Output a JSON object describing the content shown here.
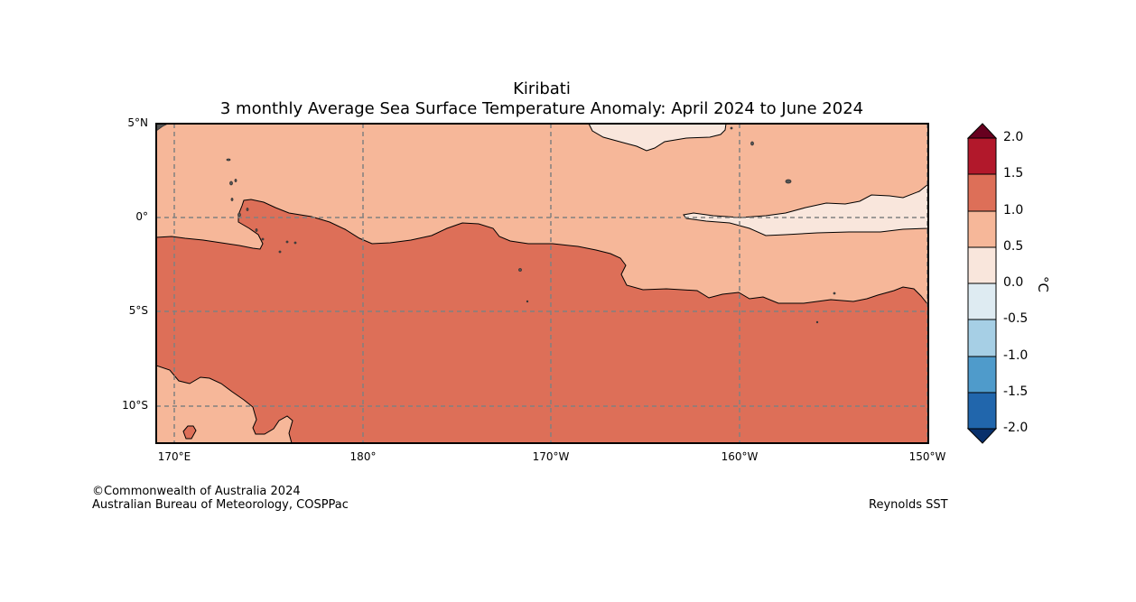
{
  "title": {
    "line1": "Kiribati",
    "line2": "3 monthly Average Sea Surface Temperature Anomaly: April 2024 to June 2024"
  },
  "axes": {
    "lat_labels": [
      "5°N",
      "0°",
      "5°S",
      "10°S"
    ],
    "lon_labels": [
      "170°E",
      "180°",
      "170°W",
      "160°W",
      "150°W"
    ]
  },
  "colorbar": {
    "unit": "°C",
    "ticks": [
      "2.0",
      "1.5",
      "1.0",
      "0.5",
      "0.0",
      "-0.5",
      "-1.0",
      "-1.5",
      "-2.0"
    ],
    "colors": {
      "over": "#67001f",
      "b_1p5_2p0": "#b2182b",
      "b_1p0_1p5": "#d6604d",
      "b_0p5_1p0": "#f4a582",
      "b_0p0_0p5": "#fddbc7",
      "b_m0p5_0p0": "#deebf7",
      "b_m1p0_m0p5": "#a6cee3",
      "b_m1p5_m1p0": "#4f9bcb",
      "b_m2p0_m1p5": "#2166ac",
      "under": "#08306b"
    }
  },
  "map_colors": {
    "warm_1p0_1p5": "#dd6f58",
    "warm_0p5_1p0": "#f6b799",
    "warm_0p0_0p5": "#f9e6dc",
    "land": "#555555",
    "grid": "#808080"
  },
  "footer": {
    "copyright": "©Commonwealth of Australia 2024",
    "agency": "Australian Bureau of Meteorology, COSPPac",
    "source": "Reynolds SST"
  }
}
